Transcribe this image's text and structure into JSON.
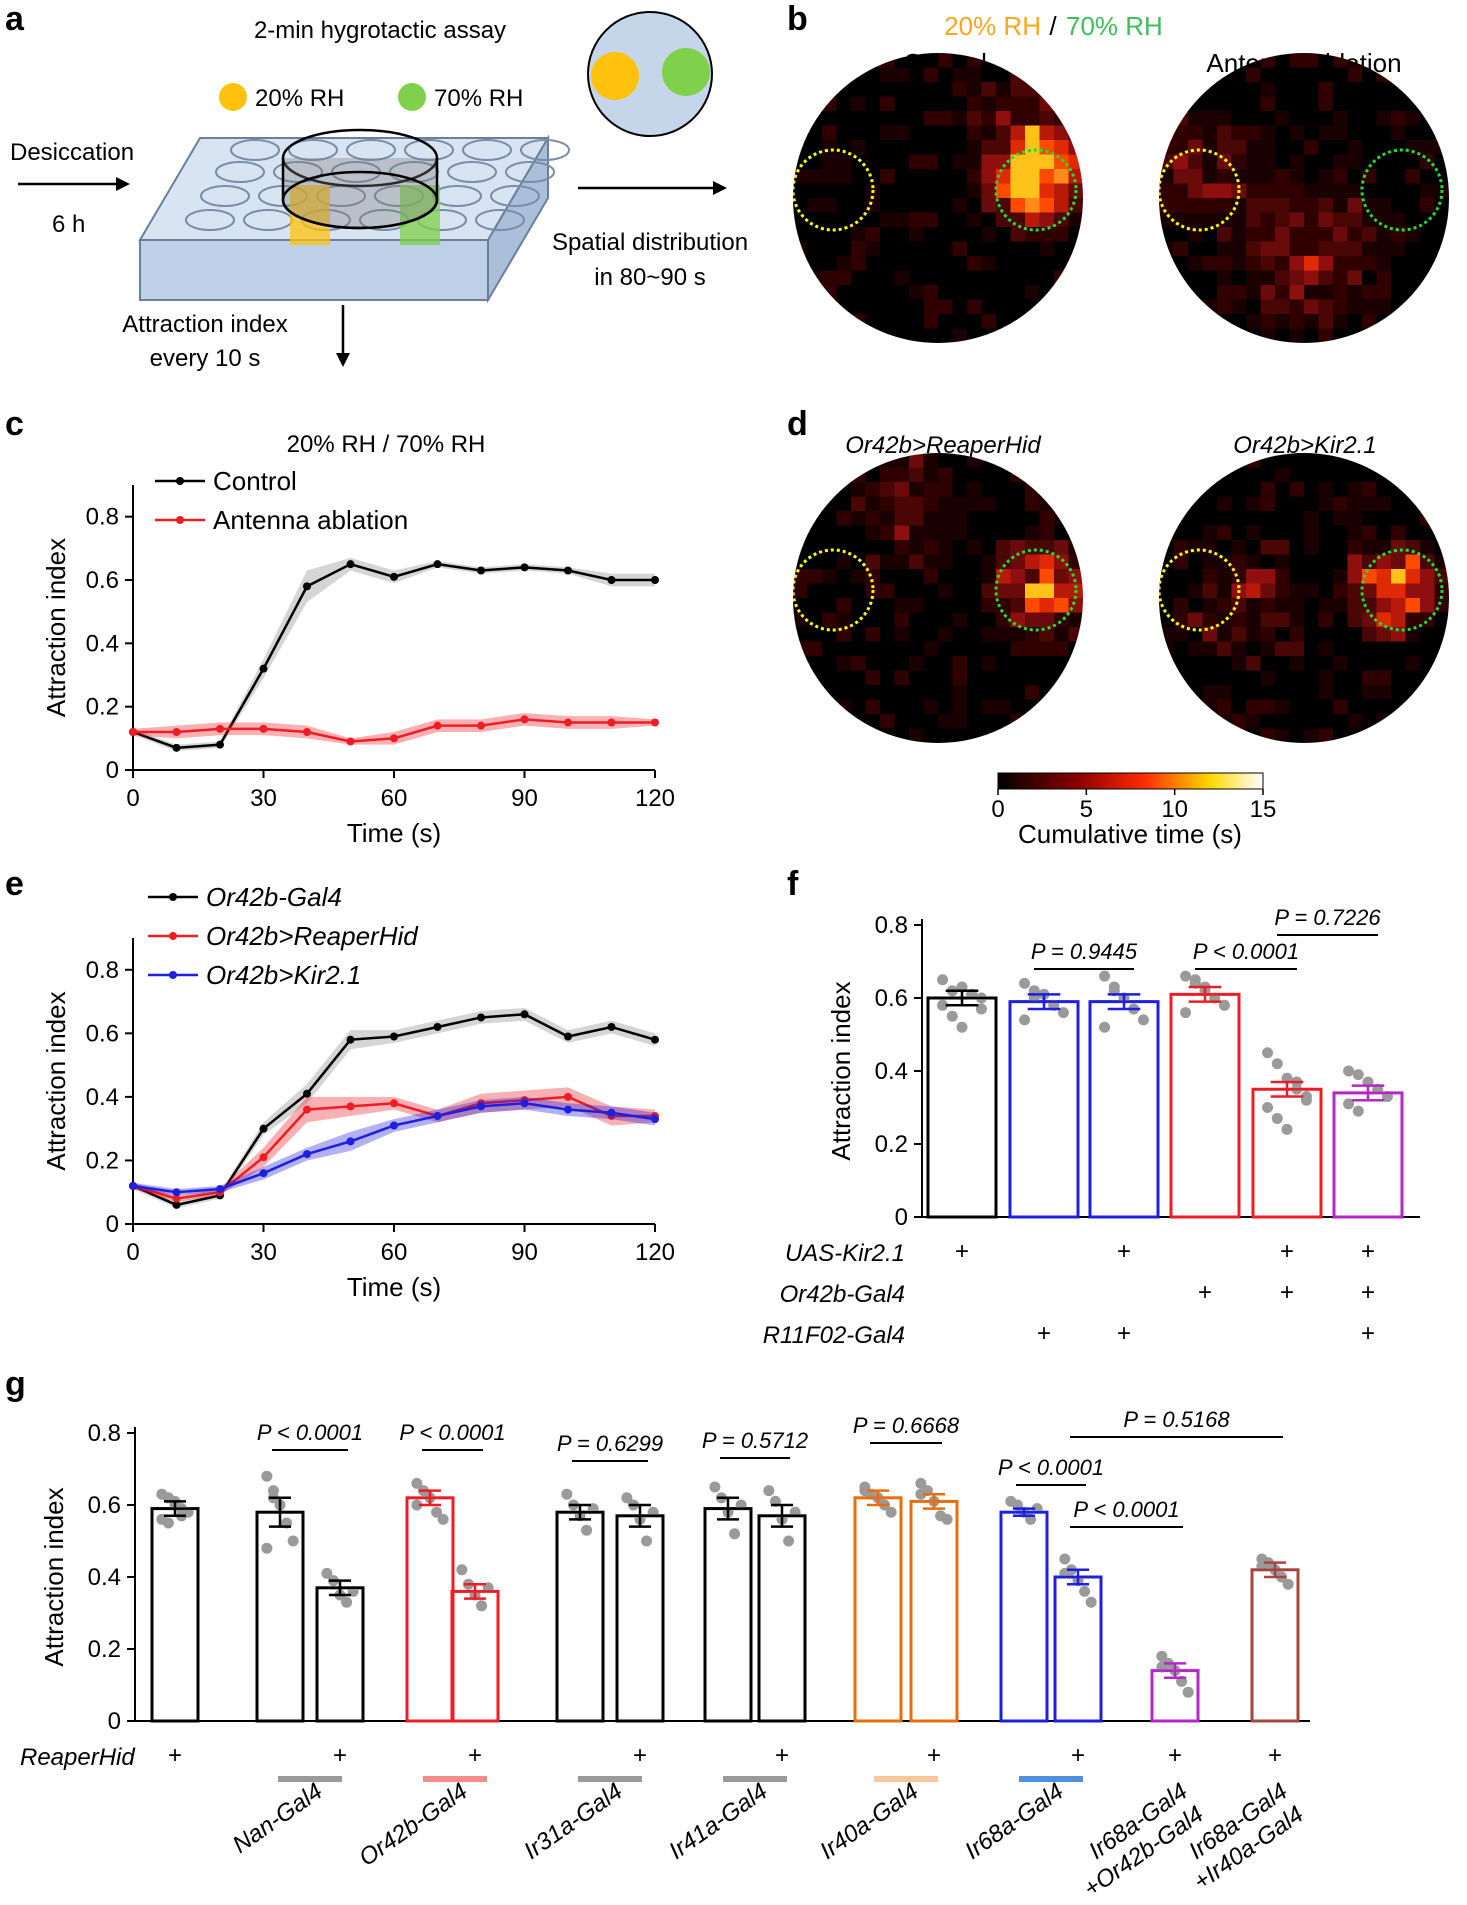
{
  "panel_labels": [
    "a",
    "b",
    "c",
    "d",
    "e",
    "f",
    "g"
  ],
  "colors": {
    "black": "#000000",
    "red": "#ee1c24",
    "blue": "#1f1fe0",
    "magenta": "#b627c9",
    "orange": "#ea6d0b",
    "brown": "#a6453f",
    "yellow": "#ffc20e",
    "green": "#7fd04a",
    "gray": "#9a9a9a"
  },
  "panel_a": {
    "title": "2-min hygrotactic assay",
    "legend_dry": "20% RH",
    "legend_wet": "70% RH",
    "step1_label": "Desiccation",
    "step1_time": "6 h",
    "output1_line1": "Spatial distribution",
    "output1_line2": "in 80~90 s",
    "output2_line1": "Attraction index",
    "output2_line2": "every 10 s"
  },
  "panel_b": {
    "title_dry": "20% RH",
    "title_sep": " / ",
    "title_wet": "70% RH",
    "heatmap_titles": [
      "Control",
      "Antenna ablation"
    ]
  },
  "panel_d": {
    "heatmap_titles": [
      "Or42b>ReaperHid",
      "Or42b>Kir2.1"
    ]
  },
  "colorbar": {
    "label": "Cumulative time (s)",
    "ticks": [
      "0",
      "5",
      "10",
      "15"
    ]
  },
  "chart_data": [
    {
      "id": "c",
      "type": "line",
      "title": "20% RH / 70% RH",
      "xlabel": "Time (s)",
      "ylabel": "Attraction index",
      "xlim": [
        0,
        120
      ],
      "ylim": [
        0,
        0.9
      ],
      "xticks": [
        0,
        30,
        60,
        90,
        120
      ],
      "yticks": [
        0,
        0.2,
        0.4,
        0.6,
        0.8
      ],
      "x": [
        0,
        10,
        20,
        30,
        40,
        50,
        60,
        70,
        80,
        90,
        100,
        110,
        120
      ],
      "series": [
        {
          "name": "Control",
          "color": "#000000",
          "values": [
            0.12,
            0.07,
            0.08,
            0.32,
            0.58,
            0.65,
            0.61,
            0.65,
            0.63,
            0.64,
            0.63,
            0.6,
            0.6
          ],
          "sem": [
            0.01,
            0.01,
            0.01,
            0.03,
            0.05,
            0.02,
            0.02,
            0.01,
            0.01,
            0.01,
            0.01,
            0.02,
            0.02
          ]
        },
        {
          "name": "Antenna ablation",
          "color": "#ee1c24",
          "values": [
            0.12,
            0.12,
            0.13,
            0.13,
            0.12,
            0.09,
            0.1,
            0.14,
            0.14,
            0.16,
            0.15,
            0.15,
            0.15
          ],
          "sem": [
            0.01,
            0.02,
            0.02,
            0.02,
            0.02,
            0.01,
            0.02,
            0.02,
            0.02,
            0.02,
            0.02,
            0.02,
            0.01
          ]
        }
      ]
    },
    {
      "id": "e",
      "type": "line",
      "xlabel": "Time (s)",
      "ylabel": "Attraction index",
      "xlim": [
        0,
        120
      ],
      "ylim": [
        0,
        0.9
      ],
      "xticks": [
        0,
        30,
        60,
        90,
        120
      ],
      "yticks": [
        0,
        0.2,
        0.4,
        0.6,
        0.8
      ],
      "x": [
        0,
        10,
        20,
        30,
        40,
        50,
        60,
        70,
        80,
        90,
        100,
        110,
        120
      ],
      "series": [
        {
          "name": "Or42b-Gal4",
          "color": "#000000",
          "values": [
            0.12,
            0.06,
            0.09,
            0.3,
            0.41,
            0.58,
            0.59,
            0.62,
            0.65,
            0.66,
            0.59,
            0.62,
            0.58
          ],
          "sem": [
            0.01,
            0.01,
            0.01,
            0.02,
            0.03,
            0.03,
            0.02,
            0.02,
            0.02,
            0.02,
            0.02,
            0.02,
            0.02
          ]
        },
        {
          "name": "Or42b>ReaperHid",
          "color": "#ee1c24",
          "values": [
            0.12,
            0.08,
            0.1,
            0.21,
            0.36,
            0.37,
            0.38,
            0.34,
            0.38,
            0.39,
            0.4,
            0.34,
            0.34
          ],
          "sem": [
            0.01,
            0.01,
            0.01,
            0.03,
            0.04,
            0.03,
            0.02,
            0.02,
            0.03,
            0.03,
            0.03,
            0.03,
            0.02
          ]
        },
        {
          "name": "Or42b>Kir2.1",
          "color": "#1f1fe0",
          "values": [
            0.12,
            0.1,
            0.11,
            0.16,
            0.22,
            0.26,
            0.31,
            0.34,
            0.37,
            0.38,
            0.36,
            0.35,
            0.33
          ],
          "sem": [
            0.01,
            0.01,
            0.01,
            0.02,
            0.02,
            0.03,
            0.02,
            0.02,
            0.02,
            0.02,
            0.02,
            0.02,
            0.02
          ]
        }
      ]
    },
    {
      "id": "f",
      "type": "bar",
      "ylabel": "Attraction index",
      "ylim": [
        0,
        0.8
      ],
      "yticks": [
        0,
        0.2,
        0.4,
        0.6,
        0.8
      ],
      "bars": [
        {
          "color": "#000000",
          "mean": 0.6,
          "sem": 0.02,
          "points": [
            0.65,
            0.62,
            0.63,
            0.61,
            0.6,
            0.58,
            0.55,
            0.52,
            0.61,
            0.57
          ]
        },
        {
          "color": "#1f1fe0",
          "mean": 0.59,
          "sem": 0.02,
          "points": [
            0.64,
            0.62,
            0.61,
            0.58,
            0.56,
            0.54,
            0.6
          ]
        },
        {
          "color": "#1f1fe0",
          "mean": 0.59,
          "sem": 0.02,
          "points": [
            0.66,
            0.63,
            0.6,
            0.57,
            0.54,
            0.52,
            0.62
          ]
        },
        {
          "color": "#ee1c24",
          "mean": 0.61,
          "sem": 0.02,
          "points": [
            0.66,
            0.65,
            0.63,
            0.6,
            0.58,
            0.56,
            0.64,
            0.62
          ]
        },
        {
          "color": "#ee1c24",
          "mean": 0.35,
          "sem": 0.02,
          "points": [
            0.45,
            0.42,
            0.38,
            0.35,
            0.33,
            0.3,
            0.27,
            0.24,
            0.37,
            0.32
          ]
        },
        {
          "color": "#b627c9",
          "mean": 0.34,
          "sem": 0.02,
          "points": [
            0.4,
            0.39,
            0.37,
            0.35,
            0.33,
            0.31,
            0.29
          ]
        }
      ],
      "comparisons": [
        {
          "label": "P = 0.9445",
          "from": 1,
          "to": 2
        },
        {
          "label": "P < 0.0001",
          "from": 3,
          "to": 4
        },
        {
          "label": "P = 0.7226",
          "from": 4,
          "to": 5
        }
      ],
      "genotype_rows": [
        {
          "label": "UAS-Kir2.1",
          "marks": [
            "+",
            "",
            "+",
            "",
            "+",
            "+"
          ]
        },
        {
          "label": "Or42b-Gal4",
          "marks": [
            "",
            "",
            "",
            "+",
            "+",
            "+"
          ]
        },
        {
          "label": "R11F02-Gal4",
          "marks": [
            "",
            "+",
            "+",
            "",
            "",
            "+"
          ]
        }
      ]
    },
    {
      "id": "g",
      "type": "bar",
      "ylabel": "Attraction index",
      "ylim": [
        0,
        0.8
      ],
      "yticks": [
        0,
        0.2,
        0.4,
        0.6,
        0.8
      ],
      "bars": [
        {
          "color": "#000000",
          "mean": 0.59,
          "sem": 0.02,
          "points": [
            0.63,
            0.62,
            0.6,
            0.59,
            0.58,
            0.56,
            0.55,
            0.61,
            0.57
          ]
        },
        {
          "color": "#000000",
          "mean": 0.58,
          "sem": 0.04,
          "points": [
            0.68,
            0.64,
            0.6,
            0.55,
            0.5,
            0.48,
            0.62
          ]
        },
        {
          "color": "#000000",
          "mean": 0.37,
          "sem": 0.02,
          "points": [
            0.41,
            0.39,
            0.35,
            0.33,
            0.36
          ]
        },
        {
          "color": "#ee1c24",
          "mean": 0.62,
          "sem": 0.02,
          "points": [
            0.66,
            0.64,
            0.62,
            0.58,
            0.56,
            0.6
          ]
        },
        {
          "color": "#ee1c24",
          "mean": 0.36,
          "sem": 0.02,
          "points": [
            0.42,
            0.38,
            0.35,
            0.32,
            0.37
          ]
        },
        {
          "color": "#000000",
          "mean": 0.58,
          "sem": 0.02,
          "points": [
            0.63,
            0.6,
            0.57,
            0.53,
            0.59
          ]
        },
        {
          "color": "#000000",
          "mean": 0.57,
          "sem": 0.03,
          "points": [
            0.62,
            0.6,
            0.56,
            0.5,
            0.58
          ]
        },
        {
          "color": "#000000",
          "mean": 0.59,
          "sem": 0.03,
          "points": [
            0.65,
            0.62,
            0.58,
            0.52,
            0.6
          ]
        },
        {
          "color": "#000000",
          "mean": 0.57,
          "sem": 0.03,
          "points": [
            0.64,
            0.61,
            0.56,
            0.5,
            0.58
          ]
        },
        {
          "color": "#ea6d0b",
          "mean": 0.62,
          "sem": 0.02,
          "points": [
            0.65,
            0.63,
            0.62,
            0.6,
            0.58,
            0.64
          ]
        },
        {
          "color": "#ea6d0b",
          "mean": 0.61,
          "sem": 0.02,
          "points": [
            0.66,
            0.64,
            0.61,
            0.57,
            0.56,
            0.63
          ]
        },
        {
          "color": "#1f1fe0",
          "mean": 0.58,
          "sem": 0.01,
          "points": [
            0.61,
            0.6,
            0.58,
            0.56,
            0.59
          ]
        },
        {
          "color": "#1f1fe0",
          "mean": 0.4,
          "sem": 0.02,
          "points": [
            0.45,
            0.42,
            0.39,
            0.36,
            0.33,
            0.41
          ]
        },
        {
          "color": "#b627c9",
          "mean": 0.14,
          "sem": 0.02,
          "points": [
            0.18,
            0.16,
            0.14,
            0.11,
            0.08,
            0.15
          ]
        },
        {
          "color": "#a6453f",
          "mean": 0.42,
          "sem": 0.02,
          "points": [
            0.45,
            0.44,
            0.42,
            0.4,
            0.38,
            0.43
          ]
        }
      ],
      "comparisons": [
        {
          "label": "P < 0.0001",
          "from": 1,
          "to": 2
        },
        {
          "label": "P < 0.0001",
          "from": 3,
          "to": 4
        },
        {
          "label": "P = 0.6299",
          "from": 5,
          "to": 6
        },
        {
          "label": "P = 0.5712",
          "from": 7,
          "to": 8
        },
        {
          "label": "P = 0.6668",
          "from": 9,
          "to": 10
        },
        {
          "label": "P < 0.0001",
          "from": 11,
          "to": 12
        },
        {
          "label": "P < 0.0001",
          "from": 12,
          "to": 13
        },
        {
          "label": "P = 0.5168",
          "from": 12,
          "to": 14
        }
      ],
      "reaper_label": "ReaperHid",
      "reaper_marks": [
        "+",
        "",
        "+",
        "",
        "+",
        "",
        "+",
        "",
        "+",
        "",
        "+",
        "",
        "+",
        "+",
        "+"
      ],
      "groups": [
        {
          "label": "Nan-Gal4",
          "color": "#9a9a9a"
        },
        {
          "label": "Or42b-Gal4",
          "color": "#f58c8c"
        },
        {
          "label": "Ir31a-Gal4",
          "color": "#9a9a9a"
        },
        {
          "label": "Ir41a-Gal4",
          "color": "#9a9a9a"
        },
        {
          "label": "Ir40a-Gal4",
          "color": "#f6c79a"
        },
        {
          "label": "Ir68a-Gal4",
          "color": "#4f8fe0"
        },
        {
          "label": "Ir68a-Gal4 +Or42b-Gal4",
          "color": ""
        },
        {
          "label": "Ir68a-Gal4 +Ir40a-Gal4",
          "color": ""
        }
      ]
    }
  ]
}
